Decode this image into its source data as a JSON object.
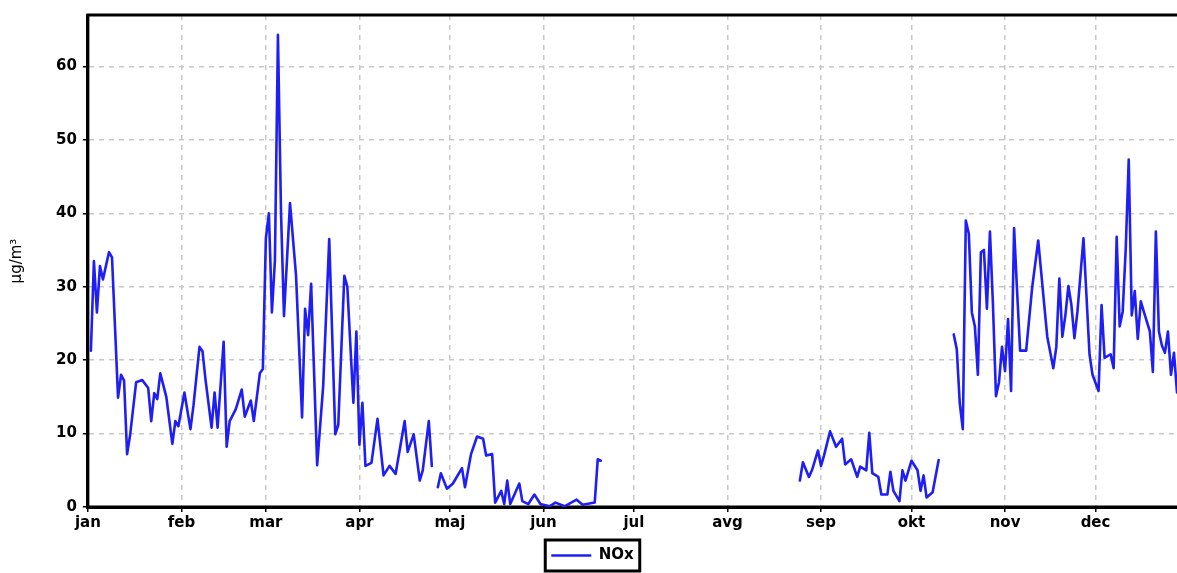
{
  "chart_data": {
    "type": "line",
    "ylabel": "µg/m³",
    "xlim": [
      "--01-01",
      "--12-28"
    ],
    "ylim": [
      0,
      67
    ],
    "xticks": [
      {
        "value": "--01-01",
        "label": "jan"
      },
      {
        "value": "--02-01",
        "label": "feb"
      },
      {
        "value": "--03-01",
        "label": "mar"
      },
      {
        "value": "--04-01",
        "label": "apr"
      },
      {
        "value": "--05-01",
        "label": "maj"
      },
      {
        "value": "--06-01",
        "label": "jun"
      },
      {
        "value": "--07-01",
        "label": "jul"
      },
      {
        "value": "--08-01",
        "label": "avg"
      },
      {
        "value": "--09-01",
        "label": "sep"
      },
      {
        "value": "--10-01",
        "label": "okt"
      },
      {
        "value": "--11-01",
        "label": "nov"
      },
      {
        "value": "--12-01",
        "label": "dec"
      }
    ],
    "yticks": [
      0,
      10,
      20,
      30,
      40,
      50,
      60
    ],
    "x": [
      "--01-02",
      "--01-03",
      "--01-04",
      "--01-05",
      "--01-06",
      "--01-08",
      "--01-09",
      "--01-11",
      "--01-12",
      "--01-13",
      "--01-14",
      "--01-15",
      "--01-17",
      "--01-19",
      "--01-21",
      "--01-22",
      "--01-23",
      "--01-24",
      "--01-25",
      "--01-27",
      "--01-29",
      "--01-30",
      "--01-31",
      "--02-02",
      "--02-04",
      "--02-05",
      "--02-07",
      "--02-08",
      "--02-09",
      "--02-11",
      "--02-12",
      "--02-13",
      "--02-15",
      "--02-16",
      "--02-17",
      "--02-19",
      "--02-21",
      "--02-22",
      "--02-24",
      "--02-25",
      "--02-27",
      "--02-28",
      "--03-01",
      "--03-02",
      "--03-03",
      "--03-04",
      "--03-05",
      "--03-06",
      "--03-07",
      "--03-09",
      "--03-11",
      "--03-13",
      "--03-14",
      "--03-15",
      "--03-16",
      "--03-18",
      "--03-20",
      "--03-22",
      "--03-24",
      "--03-25",
      "--03-27",
      "--03-28",
      "--03-30",
      "--03-31",
      "--04-01",
      "--04-02",
      "--04-03",
      "--04-05",
      "--04-07",
      "--04-09",
      "--04-11",
      "--04-13",
      "--04-14",
      "--04-16",
      "--04-17",
      "--04-19",
      "--04-21",
      "--04-22",
      "--04-24",
      "--04-25",
      "--04-26",
      "--04-27",
      "--04-28",
      "--04-30",
      "--05-02",
      "--05-05",
      "--05-06",
      "--05-08",
      "--05-10",
      "--05-12",
      "--05-13",
      "--05-15",
      "--05-16",
      "--05-18",
      "--05-19",
      "--05-20",
      "--05-21",
      "--05-24",
      "--05-25",
      "--05-27",
      "--05-29",
      "--05-31",
      "--06-03",
      "--06-05",
      "--06-08",
      "--06-12",
      "--06-14",
      "--06-18",
      "--06-19",
      "--06-20",
      "--07-23",
      "--08-25",
      "--08-26",
      "--08-28",
      "--08-29",
      "--08-31",
      "--09-01",
      "--09-02",
      "--09-04",
      "--09-06",
      "--09-08",
      "--09-09",
      "--09-11",
      "--09-13",
      "--09-14",
      "--09-16",
      "--09-17",
      "--09-18",
      "--09-20",
      "--09-21",
      "--09-23",
      "--09-24",
      "--09-25",
      "--09-27",
      "--09-28",
      "--09-29",
      "--10-01",
      "--10-03",
      "--10-04",
      "--10-05",
      "--10-06",
      "--10-08",
      "--10-10",
      "--10-13",
      "--10-15",
      "--10-16",
      "--10-17",
      "--10-18",
      "--10-19",
      "--10-20",
      "--10-21",
      "--10-22",
      "--10-23",
      "--10-24",
      "--10-25",
      "--10-26",
      "--10-27",
      "--10-28",
      "--10-29",
      "--10-30",
      "--10-31",
      "--11-01",
      "--11-02",
      "--11-03",
      "--11-04",
      "--11-05",
      "--11-06",
      "--11-08",
      "--11-10",
      "--11-12",
      "--11-14",
      "--11-15",
      "--11-17",
      "--11-18",
      "--11-19",
      "--11-20",
      "--11-21",
      "--11-22",
      "--11-23",
      "--11-24",
      "--11-25",
      "--11-27",
      "--11-29",
      "--11-30",
      "--12-02",
      "--12-03",
      "--12-04",
      "--12-06",
      "--12-07",
      "--12-08",
      "--12-09",
      "--12-10",
      "--12-11",
      "--12-12",
      "--12-13",
      "--12-14",
      "--12-15",
      "--12-16",
      "--12-17",
      "--12-19",
      "--12-20",
      "--12-21",
      "--12-22",
      "--12-23",
      "--12-24",
      "--12-25",
      "--12-26",
      "--12-27",
      "--12-28"
    ],
    "series": [
      {
        "name": "NOx",
        "color": "#1e1ef5",
        "values": [
          21.3,
          33.5,
          26.5,
          32.8,
          31,
          34.7,
          34,
          14.9,
          18,
          17.2,
          7.2,
          9.8,
          17,
          17.3,
          16.2,
          11.7,
          15.5,
          14.7,
          18.2,
          15,
          8.6,
          11.7,
          11,
          15.6,
          10.6,
          13.8,
          21.8,
          21.2,
          17.3,
          10.8,
          15.6,
          10.8,
          22.5,
          8.2,
          11.7,
          13.3,
          16,
          12.3,
          14.5,
          11.7,
          18.2,
          18.8,
          36.6,
          40,
          26.5,
          33.6,
          64.3,
          40.4,
          26,
          41.4,
          31.5,
          12.2,
          27,
          23.4,
          30.4,
          5.7,
          16.5,
          36.5,
          9.9,
          11.2,
          31.5,
          30,
          14.2,
          23.9,
          8.5,
          14.2,
          5.6,
          6,
          12,
          4.3,
          5.6,
          4.5,
          6.9,
          11.7,
          7.5,
          9.9,
          3.6,
          5,
          11.7,
          5.6,
          null,
          2.7,
          4.6,
          2.5,
          3.2,
          5.3,
          2.7,
          7.2,
          9.6,
          9.3,
          7,
          7.2,
          0.6,
          2.2,
          0.4,
          3.6,
          0.4,
          3.2,
          0.8,
          0.4,
          1.7,
          0.4,
          0.1,
          0.6,
          0.1,
          1,
          0.3,
          0.6,
          6.5,
          6.3,
          null,
          3.6,
          6.1,
          4.1,
          5,
          7.7,
          5.6,
          7,
          10.3,
          8.2,
          9.3,
          5.8,
          6.5,
          4.1,
          5.5,
          5,
          10.1,
          4.6,
          4.1,
          1.7,
          1.7,
          4.8,
          2.2,
          0.8,
          5,
          3.6,
          6.3,
          5,
          2.2,
          4.3,
          1.3,
          2,
          6.4,
          null,
          23.5,
          21.5,
          14.1,
          10.6,
          39,
          37.2,
          26.5,
          24.6,
          18,
          34.7,
          35,
          27,
          37.5,
          27.5,
          15.1,
          17,
          21.8,
          18.5,
          25.6,
          15.8,
          38,
          29.4,
          21.3,
          21.3,
          29.9,
          36.3,
          27.5,
          23.2,
          18.9,
          21.8,
          31.1,
          23.2,
          26.1,
          30.1,
          27.5,
          23,
          26.6,
          36.6,
          20.8,
          18,
          15.8,
          27.5,
          20.3,
          20.8,
          18.9,
          36.8,
          24.6,
          26.6,
          35.1,
          47.3,
          26.1,
          29.4,
          22.9,
          28,
          26.6,
          23.9,
          18.4,
          37.5,
          23.9,
          22,
          21,
          23.9,
          18,
          21,
          15.6
        ]
      }
    ],
    "grid": true,
    "legend": "bottom",
    "marker": "none",
    "line_style": "solid"
  }
}
